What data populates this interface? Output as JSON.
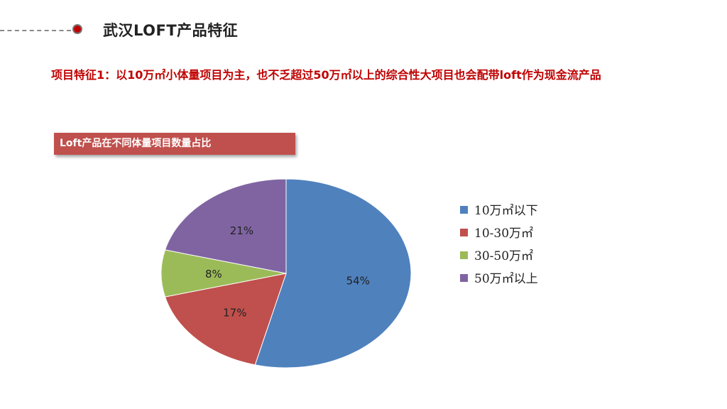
{
  "page": {
    "title": "武汉LOFT产品特征",
    "feature_text": "项目特征1：以10万㎡小体量项目为主，也不乏超过50万㎡以上的综合性大项目也会配带loft作为现金流产品"
  },
  "chart_label": "Loft产品在不同体量项目数量占比",
  "chart_data": {
    "type": "pie",
    "title": "Loft产品在不同体量项目数量占比",
    "categories": [
      "10万㎡以下",
      "10-30万㎡",
      "30-50万㎡",
      "50万㎡以上"
    ],
    "values": [
      54,
      17,
      8,
      21
    ],
    "data_labels": [
      "54%",
      "17%",
      "8%",
      "21%"
    ],
    "colors": [
      "#4f81bd",
      "#c0504d",
      "#9bbb59",
      "#8064a2"
    ],
    "legend_position": "right"
  }
}
